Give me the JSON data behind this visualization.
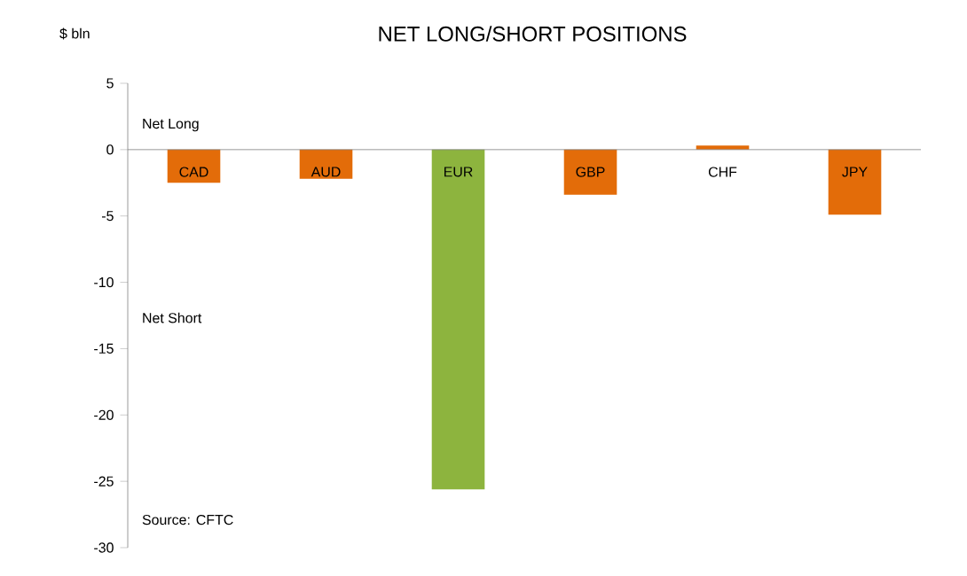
{
  "chart_data": {
    "type": "bar",
    "title": "NET LONG/SHORT POSITIONS",
    "ylabel": "$ bln",
    "categories": [
      "CAD",
      "AUD",
      "EUR",
      "GBP",
      "CHF",
      "JPY"
    ],
    "values": [
      -2.5,
      -2.2,
      -25.6,
      -3.4,
      0.3,
      -4.9
    ],
    "colors": [
      "#e36c09",
      "#e36c09",
      "#8db43e",
      "#e36c09",
      "#e36c09",
      "#e36c09"
    ],
    "ylim": [
      -30,
      5
    ],
    "yticks": [
      -30,
      -25,
      -20,
      -15,
      -10,
      -5,
      0,
      5
    ],
    "annotations": [
      "Net Long",
      "Net Short",
      "Source: CFTC"
    ]
  }
}
